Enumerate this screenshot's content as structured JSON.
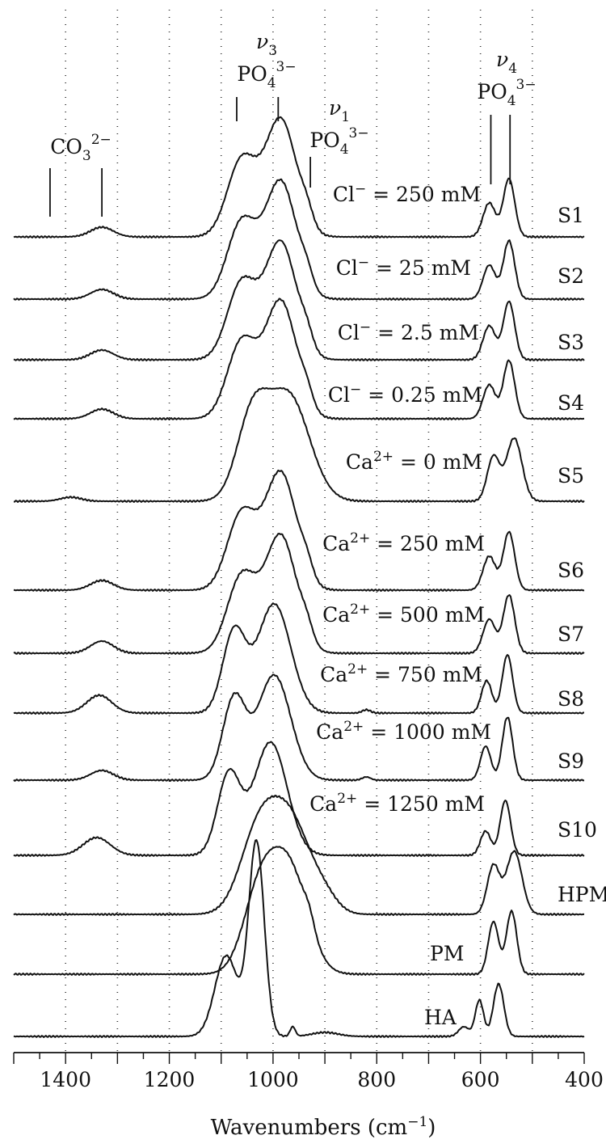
{
  "chart_data": {
    "type": "line",
    "xlabel_main": "Wavenumbers (cm",
    "xlabel_sup": "−1",
    "xlabel_close": ")",
    "xlim": [
      1500,
      400
    ],
    "x_reversed": true,
    "xticks": [
      1400,
      1200,
      1000,
      800,
      600,
      400
    ],
    "xtick_labels": [
      "1400",
      "1200",
      "1000",
      "800",
      "600",
      "400"
    ],
    "grid": "vertical dotted",
    "series": [
      {
        "name": "S1",
        "condition": {
          "ion": "Cl",
          "sup": "−",
          "rest": " = 250 mM"
        },
        "peaks": [
          {
            "x": 1330,
            "h": 0.12,
            "w": 22
          },
          {
            "x": 1060,
            "h": 0.95,
            "w": 28
          },
          {
            "x": 985,
            "h": 1.45,
            "w": 30
          },
          {
            "x": 935,
            "h": 0.18,
            "w": 12
          },
          {
            "x": 583,
            "h": 0.42,
            "w": 12
          },
          {
            "x": 545,
            "h": 0.72,
            "w": 11
          }
        ]
      },
      {
        "name": "S2",
        "condition": {
          "ion": "Cl",
          "sup": "−",
          "rest": " = 25 mM"
        },
        "peaks": [
          {
            "x": 1330,
            "h": 0.12,
            "w": 22
          },
          {
            "x": 1060,
            "h": 0.95,
            "w": 28
          },
          {
            "x": 985,
            "h": 1.45,
            "w": 30
          },
          {
            "x": 935,
            "h": 0.18,
            "w": 12
          },
          {
            "x": 583,
            "h": 0.42,
            "w": 12
          },
          {
            "x": 545,
            "h": 0.72,
            "w": 11
          }
        ]
      },
      {
        "name": "S3",
        "condition": {
          "ion": "Cl",
          "sup": "−",
          "rest": " = 2.5 mM"
        },
        "peaks": [
          {
            "x": 1330,
            "h": 0.12,
            "w": 22
          },
          {
            "x": 1060,
            "h": 0.95,
            "w": 28
          },
          {
            "x": 985,
            "h": 1.45,
            "w": 30
          },
          {
            "x": 935,
            "h": 0.18,
            "w": 12
          },
          {
            "x": 583,
            "h": 0.42,
            "w": 12
          },
          {
            "x": 545,
            "h": 0.72,
            "w": 11
          }
        ]
      },
      {
        "name": "S4",
        "condition": {
          "ion": "Cl",
          "sup": "−",
          "rest": " = 0.25 mM"
        },
        "peaks": [
          {
            "x": 1330,
            "h": 0.12,
            "w": 22
          },
          {
            "x": 1060,
            "h": 0.95,
            "w": 28
          },
          {
            "x": 985,
            "h": 1.45,
            "w": 30
          },
          {
            "x": 935,
            "h": 0.18,
            "w": 12
          },
          {
            "x": 583,
            "h": 0.42,
            "w": 12
          },
          {
            "x": 545,
            "h": 0.72,
            "w": 11
          }
        ]
      },
      {
        "name": "S5",
        "condition": {
          "ion": "Ca",
          "sup": "2+",
          "rest": " = 0 mM"
        },
        "peaks": [
          {
            "x": 1390,
            "h": 0.05,
            "w": 20
          },
          {
            "x": 1040,
            "h": 1.0,
            "w": 30
          },
          {
            "x": 970,
            "h": 1.3,
            "w": 40
          },
          {
            "x": 575,
            "h": 0.55,
            "w": 12
          },
          {
            "x": 535,
            "h": 0.78,
            "w": 15
          }
        ]
      },
      {
        "name": "S6",
        "condition": {
          "ion": "Ca",
          "sup": "2+",
          "rest": " = 250 mM"
        },
        "peaks": [
          {
            "x": 1330,
            "h": 0.12,
            "w": 22
          },
          {
            "x": 1060,
            "h": 0.95,
            "w": 28
          },
          {
            "x": 985,
            "h": 1.45,
            "w": 30
          },
          {
            "x": 935,
            "h": 0.18,
            "w": 12
          },
          {
            "x": 583,
            "h": 0.42,
            "w": 12
          },
          {
            "x": 545,
            "h": 0.72,
            "w": 11
          }
        ]
      },
      {
        "name": "S7",
        "condition": {
          "ion": "Ca",
          "sup": "2+",
          "rest": " = 500 mM"
        },
        "peaks": [
          {
            "x": 1330,
            "h": 0.15,
            "w": 22
          },
          {
            "x": 1060,
            "h": 0.95,
            "w": 28
          },
          {
            "x": 985,
            "h": 1.45,
            "w": 30
          },
          {
            "x": 935,
            "h": 0.18,
            "w": 12
          },
          {
            "x": 583,
            "h": 0.42,
            "w": 12
          },
          {
            "x": 545,
            "h": 0.72,
            "w": 11
          }
        ]
      },
      {
        "name": "S8",
        "condition": {
          "ion": "Ca",
          "sup": "2+",
          "rest": " = 750 mM"
        },
        "peaks": [
          {
            "x": 1335,
            "h": 0.22,
            "w": 24
          },
          {
            "x": 1075,
            "h": 1.0,
            "w": 22
          },
          {
            "x": 998,
            "h": 1.35,
            "w": 32
          },
          {
            "x": 820,
            "h": 0.04,
            "w": 8
          },
          {
            "x": 588,
            "h": 0.4,
            "w": 10
          },
          {
            "x": 548,
            "h": 0.72,
            "w": 10
          }
        ]
      },
      {
        "name": "S9",
        "condition": {
          "ion": "Ca",
          "sup": "2+",
          "rest": " = 1000 mM"
        },
        "peaks": [
          {
            "x": 1330,
            "h": 0.12,
            "w": 22
          },
          {
            "x": 1075,
            "h": 1.0,
            "w": 22
          },
          {
            "x": 998,
            "h": 1.3,
            "w": 32
          },
          {
            "x": 820,
            "h": 0.04,
            "w": 8
          },
          {
            "x": 590,
            "h": 0.42,
            "w": 10
          },
          {
            "x": 548,
            "h": 0.78,
            "w": 10
          }
        ]
      },
      {
        "name": "S10",
        "condition": {
          "ion": "Ca",
          "sup": "2+",
          "rest": " = 1250 mM"
        },
        "peaks": [
          {
            "x": 1340,
            "h": 0.22,
            "w": 26
          },
          {
            "x": 1085,
            "h": 1.0,
            "w": 22
          },
          {
            "x": 1005,
            "h": 1.4,
            "w": 32
          },
          {
            "x": 590,
            "h": 0.3,
            "w": 10
          },
          {
            "x": 552,
            "h": 0.68,
            "w": 10
          }
        ]
      },
      {
        "name": "HPM",
        "condition": null,
        "peaks": [
          {
            "x": 1030,
            "h": 0.9,
            "w": 35
          },
          {
            "x": 968,
            "h": 1.15,
            "w": 40
          },
          {
            "x": 900,
            "h": 0.15,
            "w": 25
          },
          {
            "x": 575,
            "h": 0.6,
            "w": 12
          },
          {
            "x": 535,
            "h": 0.78,
            "w": 15
          }
        ]
      },
      {
        "name": "PM",
        "condition": null,
        "peaks": [
          {
            "x": 1025,
            "h": 1.0,
            "w": 32
          },
          {
            "x": 968,
            "h": 1.25,
            "w": 35
          },
          {
            "x": 930,
            "h": 0.15,
            "w": 10
          },
          {
            "x": 575,
            "h": 0.65,
            "w": 10
          },
          {
            "x": 540,
            "h": 0.78,
            "w": 10
          }
        ]
      },
      {
        "name": "HA",
        "condition": null,
        "peaks": [
          {
            "x": 1090,
            "h": 1.0,
            "w": 22
          },
          {
            "x": 1032,
            "h": 2.4,
            "w": 15
          },
          {
            "x": 962,
            "h": 0.12,
            "w": 5
          },
          {
            "x": 900,
            "h": 0.05,
            "w": 25
          },
          {
            "x": 632,
            "h": 0.12,
            "w": 10
          },
          {
            "x": 602,
            "h": 0.45,
            "w": 8
          },
          {
            "x": 565,
            "h": 0.65,
            "w": 10
          }
        ]
      }
    ],
    "annotations": [
      {
        "id": "co3",
        "base": "CO",
        "sub": "3",
        "sup": "2−",
        "greek": null,
        "greek_sub": null,
        "markers_x": [
          1430,
          1330
        ]
      },
      {
        "id": "nu3",
        "base": "PO",
        "sub": "4",
        "sup": "3−",
        "greek": "ν",
        "greek_sub": "3",
        "markers_x": [
          1070,
          990
        ]
      },
      {
        "id": "nu1",
        "base": "PO",
        "sub": "4",
        "sup": "3−",
        "greek": "ν",
        "greek_sub": "1",
        "markers_x": [
          928
        ]
      },
      {
        "id": "nu4",
        "base": "PO",
        "sub": "4",
        "sup": "3−",
        "greek": "ν",
        "greek_sub": "4",
        "markers_x": [
          580,
          543
        ]
      }
    ]
  }
}
